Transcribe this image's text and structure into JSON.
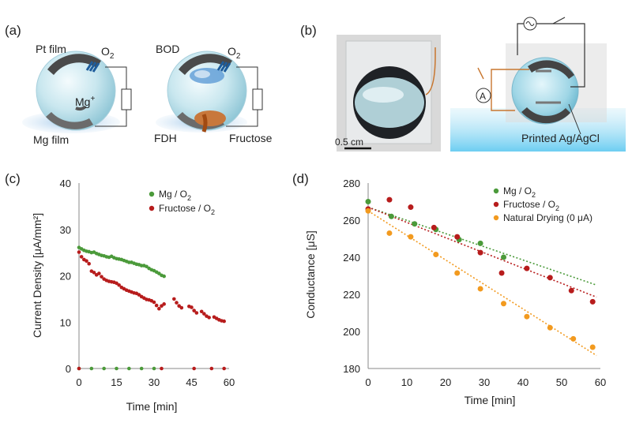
{
  "panels": {
    "a": {
      "label": "(a)",
      "left": {
        "pt_film": "Pt film",
        "o2": "O",
        "o2_sub": "2",
        "mg_ion": "Mg",
        "mg_ion_sup": "+",
        "mg_film": "Mg film"
      },
      "right": {
        "bod": "BOD",
        "o2": "O",
        "o2_sub": "2",
        "fdh": "FDH",
        "fructose": "Fructose"
      }
    },
    "b": {
      "label": "(b)",
      "scale_bar": "0.5 cm",
      "ammeter": "A",
      "electrode": "Printed Ag/AgCl"
    }
  },
  "colors": {
    "mg": "#4b9a3a",
    "fructose": "#b71c1c",
    "drying": "#f29a1f"
  },
  "chart_data": [
    {
      "panel_label": "(c)",
      "type": "scatter",
      "xlabel": "Time [min]",
      "ylabel": "Current Density [μA/mm²]",
      "xlim": [
        0,
        60
      ],
      "ylim": [
        0,
        40
      ],
      "xticks": [
        "0",
        "15",
        "30",
        "45",
        "60"
      ],
      "yticks": [
        "0",
        "10",
        "20",
        "30",
        "40"
      ],
      "legend_position": "top-right",
      "series": [
        {
          "name": "Mg / O",
          "name_sub": "2",
          "color": "#4b9a3a",
          "points": [
            [
              0,
              26.1
            ],
            [
              1,
              25.8
            ],
            [
              2,
              25.5
            ],
            [
              3,
              25.3
            ],
            [
              4,
              25.2
            ],
            [
              5,
              25.0
            ],
            [
              6,
              25.1
            ],
            [
              7,
              24.8
            ],
            [
              8,
              24.6
            ],
            [
              9,
              24.4
            ],
            [
              10,
              24.3
            ],
            [
              11,
              24.1
            ],
            [
              12,
              24.0
            ],
            [
              13,
              24.2
            ],
            [
              14,
              23.9
            ],
            [
              15,
              23.7
            ],
            [
              16,
              23.6
            ],
            [
              17,
              23.5
            ],
            [
              18,
              23.3
            ],
            [
              19,
              23.1
            ],
            [
              20,
              22.9
            ],
            [
              21,
              22.9
            ],
            [
              22,
              22.7
            ],
            [
              23,
              22.5
            ],
            [
              24,
              22.4
            ],
            [
              25,
              22.2
            ],
            [
              26,
              22.2
            ],
            [
              27,
              22.0
            ],
            [
              28,
              21.6
            ],
            [
              29,
              21.3
            ],
            [
              30,
              21.1
            ],
            [
              31,
              20.8
            ],
            [
              32,
              20.5
            ],
            [
              33,
              20.1
            ],
            [
              34,
              19.9
            ],
            [
              0,
              0
            ],
            [
              5,
              0
            ],
            [
              10,
              0
            ],
            [
              15,
              0
            ],
            [
              20,
              0
            ],
            [
              25,
              0
            ],
            [
              30,
              0
            ]
          ]
        },
        {
          "name": "Fructose / O",
          "name_sub": "2",
          "color": "#b71c1c",
          "points": [
            [
              0,
              25.1
            ],
            [
              1,
              24.1
            ],
            [
              2,
              23.5
            ],
            [
              3,
              23.2
            ],
            [
              4,
              22.6
            ],
            [
              5,
              21.0
            ],
            [
              6,
              20.7
            ],
            [
              7,
              20.2
            ],
            [
              8,
              20.5
            ],
            [
              9,
              19.8
            ],
            [
              10,
              19.3
            ],
            [
              11,
              19.0
            ],
            [
              12,
              18.8
            ],
            [
              13,
              18.7
            ],
            [
              14,
              18.6
            ],
            [
              15,
              18.4
            ],
            [
              16,
              18.0
            ],
            [
              17,
              17.5
            ],
            [
              18,
              17.2
            ],
            [
              19,
              16.9
            ],
            [
              20,
              16.7
            ],
            [
              21,
              16.5
            ],
            [
              22,
              16.3
            ],
            [
              23,
              16.2
            ],
            [
              24,
              15.9
            ],
            [
              25,
              15.5
            ],
            [
              26,
              15.2
            ],
            [
              27,
              14.9
            ],
            [
              28,
              14.8
            ],
            [
              29,
              14.6
            ],
            [
              30,
              14.3
            ],
            [
              31,
              13.6
            ],
            [
              32,
              12.9
            ],
            [
              33,
              13.5
            ],
            [
              34,
              13.9
            ],
            [
              38,
              15.0
            ],
            [
              39,
              14.2
            ],
            [
              40,
              13.5
            ],
            [
              41,
              13.1
            ],
            [
              44,
              13.4
            ],
            [
              45,
              13.2
            ],
            [
              46,
              12.5
            ],
            [
              47,
              12.0
            ],
            [
              49,
              12.3
            ],
            [
              50,
              11.8
            ],
            [
              51,
              11.3
            ],
            [
              52,
              11.0
            ],
            [
              54,
              11.1
            ],
            [
              55,
              10.8
            ],
            [
              56,
              10.5
            ],
            [
              57,
              10.3
            ],
            [
              58,
              10.2
            ],
            [
              0,
              0
            ],
            [
              33,
              0
            ],
            [
              46,
              0
            ],
            [
              53,
              0
            ],
            [
              58,
              0
            ]
          ]
        }
      ]
    },
    {
      "panel_label": "(d)",
      "type": "scatter",
      "xlabel": "Time [min]",
      "ylabel": "Conductance  [μS]",
      "xlim": [
        0,
        60
      ],
      "ylim": [
        180,
        280
      ],
      "xticks": [
        "0",
        "10",
        "20",
        "30",
        "40",
        "50",
        "60"
      ],
      "yticks": [
        "180",
        "200",
        "220",
        "240",
        "260",
        "280"
      ],
      "legend_position": "top-right",
      "series": [
        {
          "name": "Mg / O",
          "name_sub": "2",
          "color": "#4b9a3a",
          "points": [
            [
              0,
              270
            ],
            [
              6,
              262
            ],
            [
              12,
              258
            ],
            [
              17.5,
              255
            ],
            [
              23.5,
              249.5
            ],
            [
              29,
              247.5
            ],
            [
              35,
              240
            ]
          ],
          "trendline": [
            [
              0,
              267
            ],
            [
              59,
              225
            ]
          ]
        },
        {
          "name": "Fructose / O",
          "name_sub": "2",
          "color": "#b71c1c",
          "points": [
            [
              0,
              266
            ],
            [
              5.5,
              271
            ],
            [
              11,
              267
            ],
            [
              17,
              256
            ],
            [
              23,
              251
            ],
            [
              29,
              242.5
            ],
            [
              34.5,
              231.5
            ],
            [
              41,
              234
            ],
            [
              47,
              229
            ],
            [
              52.5,
              222
            ],
            [
              58,
              216
            ]
          ],
          "trendline": [
            [
              0,
              267
            ],
            [
              59,
              218.5
            ]
          ]
        },
        {
          "name": "Natural Drying (0 μA)",
          "name_sub": "",
          "color": "#f29a1f",
          "points": [
            [
              0,
              265
            ],
            [
              5.5,
              253
            ],
            [
              11,
              251
            ],
            [
              17.5,
              241.5
            ],
            [
              23,
              231.5
            ],
            [
              29,
              223
            ],
            [
              35,
              215
            ],
            [
              41,
              208
            ],
            [
              47,
              202
            ],
            [
              53,
              196
            ],
            [
              58,
              191.5
            ]
          ],
          "trendline": [
            [
              0,
              265
            ],
            [
              59,
              187
            ]
          ]
        }
      ]
    }
  ]
}
